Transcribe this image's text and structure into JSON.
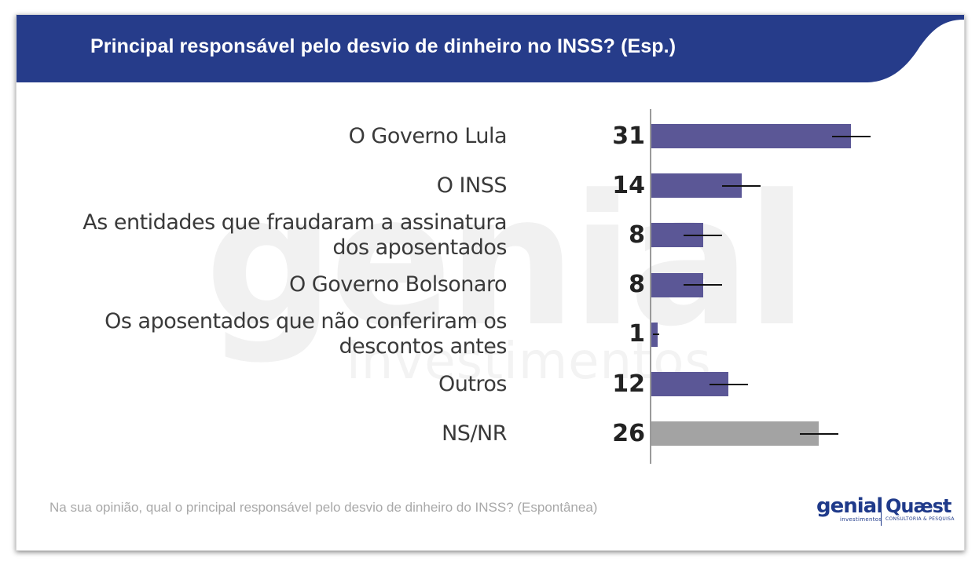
{
  "header": {
    "title": "Principal responsável pelo desvio de dinheiro no INSS? (Esp.)"
  },
  "watermark": {
    "main": "genial",
    "sub": "investimentos"
  },
  "chart_data": {
    "type": "bar",
    "orientation": "horizontal",
    "title": "Principal responsável pelo desvio de dinheiro no INSS? (Esp.)",
    "categories": [
      [
        "O Governo Lula"
      ],
      [
        "O INSS"
      ],
      [
        "As entidades que fraudaram a assinatura",
        "dos aposentados"
      ],
      [
        "O Governo Bolsonaro"
      ],
      [
        "Os aposentados que não conferiram os",
        "descontos antes"
      ],
      [
        "Outros"
      ],
      [
        "NS/NR"
      ]
    ],
    "values": [
      31,
      14,
      8,
      8,
      1,
      12,
      26
    ],
    "colors": [
      "#5b5796",
      "#5b5796",
      "#5b5796",
      "#5b5796",
      "#5b5796",
      "#5b5796",
      "#a3a3a3"
    ],
    "error_margin": 3,
    "xlim": [
      0,
      40
    ],
    "xlabel": "",
    "ylabel": "",
    "grid": false,
    "error_bars": true
  },
  "footnote": "Na sua opinião, qual o principal responsável pelo desvio de dinheiro do INSS? (Espontânea)",
  "logos": {
    "genial_main": "genial",
    "genial_sub": "investimentos",
    "quaest_main": "Quæst",
    "quaest_sub": "CONSULTORIA & PESQUISA"
  },
  "colors": {
    "header_bg": "#263c8a",
    "bar": "#5b5796",
    "bar_nsnr": "#a3a3a3",
    "error": "#111111"
  }
}
